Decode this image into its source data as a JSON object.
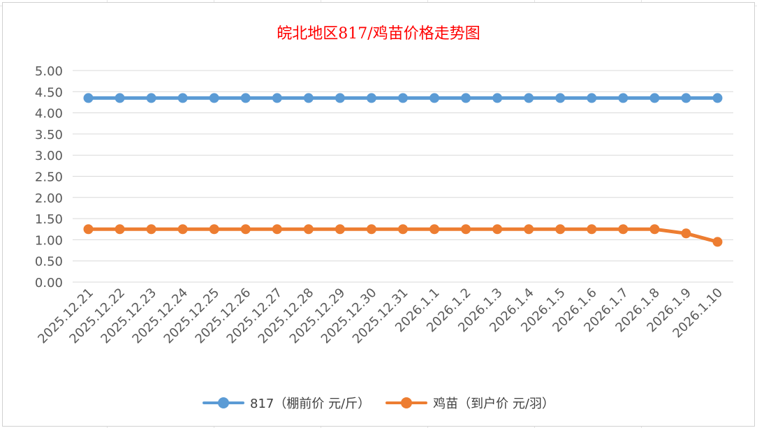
{
  "chart_data": {
    "type": "line",
    "title": "皖北地区817/鸡苗价格走势图",
    "title_color": "#ff0000",
    "xlabel": "",
    "ylabel": "",
    "ylim": [
      0,
      5
    ],
    "yticks": [
      "0.00",
      "0.50",
      "1.00",
      "1.50",
      "2.00",
      "2.50",
      "3.00",
      "3.50",
      "4.00",
      "4.50",
      "5.00"
    ],
    "grid": true,
    "legend_position": "bottom",
    "categories": [
      "2025.12.21",
      "2025.12.22",
      "2025.12.23",
      "2025.12.24",
      "2025.12.25",
      "2025.12.26",
      "2025.12.27",
      "2025.12.28",
      "2025.12.29",
      "2025.12.30",
      "2025.12.31",
      "2026.1.1",
      "2026.1.2",
      "2026.1.3",
      "2026.1.4",
      "2026.1.5",
      "2026.1.6",
      "2026.1.7",
      "2026.1.8",
      "2026.1.9",
      "2026.1.10"
    ],
    "series": [
      {
        "name": "817（棚前价 元/斤）",
        "color": "#5b9bd5",
        "values": [
          4.35,
          4.35,
          4.35,
          4.35,
          4.35,
          4.35,
          4.35,
          4.35,
          4.35,
          4.35,
          4.35,
          4.35,
          4.35,
          4.35,
          4.35,
          4.35,
          4.35,
          4.35,
          4.35,
          4.35,
          4.35
        ]
      },
      {
        "name": "鸡苗（到户价 元/羽）",
        "color": "#ed7d31",
        "values": [
          1.25,
          1.25,
          1.25,
          1.25,
          1.25,
          1.25,
          1.25,
          1.25,
          1.25,
          1.25,
          1.25,
          1.25,
          1.25,
          1.25,
          1.25,
          1.25,
          1.25,
          1.25,
          1.25,
          1.15,
          0.95
        ]
      }
    ]
  }
}
